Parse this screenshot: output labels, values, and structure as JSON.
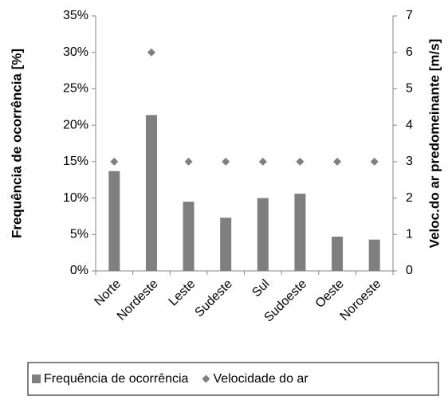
{
  "chart_data": {
    "type": "bar_scatter",
    "y_label": "Frequência de ocorrência [%]",
    "y2_label": "Veloc.do ar predomeinante [m/s]",
    "categories": [
      "Norte",
      "Nordeste",
      "Leste",
      "Sudeste",
      "Sul",
      "Sudoeste",
      "Oeste",
      "Noroeste"
    ],
    "series": [
      {
        "name": "Frequência de ocorrência",
        "color": "#7f7f7f",
        "kind": "bar",
        "values": [
          13.7,
          21.4,
          9.5,
          7.3,
          10.0,
          10.6,
          4.7,
          4.3
        ]
      },
      {
        "name": "Velocidade do ar",
        "color": "#7f7f7f",
        "kind": "marker",
        "axis": "y2",
        "values": [
          3,
          6,
          3,
          3,
          3,
          3,
          3,
          3
        ]
      }
    ],
    "ylim": [
      0,
      35
    ],
    "yticks": [
      {
        "value": 0,
        "label": "0%"
      },
      {
        "value": 5,
        "label": "5%"
      },
      {
        "value": 10,
        "label": "10%"
      },
      {
        "value": 15,
        "label": "15%"
      },
      {
        "value": 20,
        "label": "20%"
      },
      {
        "value": 25,
        "label": "25%"
      },
      {
        "value": 30,
        "label": "30%"
      },
      {
        "value": 35,
        "label": "35%"
      }
    ],
    "y2lim": [
      0,
      7
    ],
    "y2ticks": [
      0,
      1,
      2,
      3,
      4,
      5,
      6,
      7
    ],
    "grid": false,
    "legend": "bottom"
  }
}
